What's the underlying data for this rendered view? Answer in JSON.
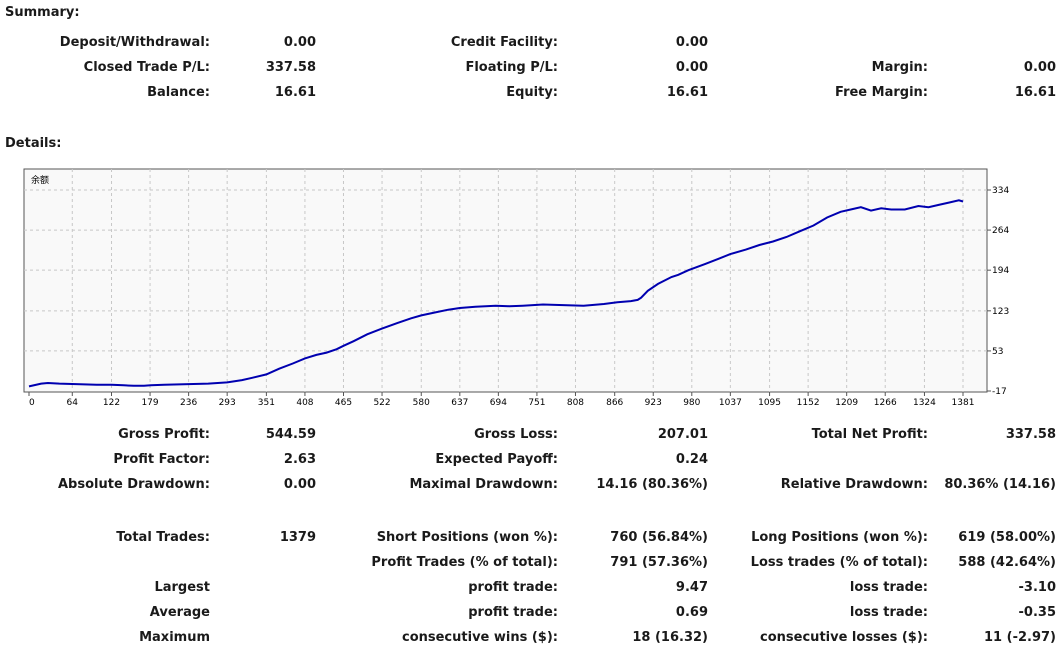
{
  "summary": {
    "heading": "Summary:",
    "deposit_label": "Deposit/Withdrawal:",
    "deposit_value": "0.00",
    "credit_label": "Credit Facility:",
    "credit_value": "0.00",
    "closed_pl_label": "Closed Trade P/L:",
    "closed_pl_value": "337.58",
    "floating_label": "Floating P/L:",
    "floating_value": "0.00",
    "margin_label": "Margin:",
    "margin_value": "0.00",
    "balance_label": "Balance:",
    "balance_value": "16.61",
    "equity_label": "Equity:",
    "equity_value": "16.61",
    "free_margin_label": "Free Margin:",
    "free_margin_value": "16.61"
  },
  "details": {
    "heading": "Details:",
    "chart_legend": "余额"
  },
  "chart_data": {
    "type": "line",
    "x_ticks": [
      "0",
      "64",
      "122",
      "179",
      "236",
      "293",
      "351",
      "408",
      "465",
      "522",
      "580",
      "637",
      "694",
      "751",
      "808",
      "866",
      "923",
      "980",
      "1037",
      "1095",
      "1152",
      "1209",
      "1266",
      "1324",
      "1381"
    ],
    "y_ticks": [
      "334",
      "264",
      "194",
      "123",
      "53",
      "-17"
    ],
    "xlim": [
      0,
      1381
    ],
    "ylim": [
      -17,
      334
    ],
    "series": [
      {
        "name": "余额",
        "color": "#0000b0",
        "x": [
          0,
          18,
          28,
          45,
          70,
          100,
          122,
          140,
          155,
          170,
          180,
          200,
          236,
          265,
          293,
          315,
          330,
          351,
          370,
          390,
          408,
          425,
          440,
          455,
          465,
          480,
          500,
          522,
          545,
          565,
          580,
          600,
          620,
          637,
          660,
          690,
          710,
          730,
          760,
          790,
          820,
          850,
          870,
          890,
          900,
          905,
          915,
          930,
          950,
          960,
          975,
          1000,
          1020,
          1037,
          1060,
          1080,
          1100,
          1120,
          1140,
          1160,
          1180,
          1200,
          1215,
          1230,
          1245,
          1260,
          1275,
          1295,
          1315,
          1330,
          1345,
          1360,
          1375,
          1381
        ],
        "y": [
          -9,
          -4,
          -3,
          -4,
          -5,
          -6,
          -6,
          -7,
          -8,
          -8,
          -7,
          -6,
          -5,
          -4,
          -2,
          2,
          6,
          12,
          22,
          31,
          40,
          46,
          50,
          56,
          62,
          70,
          82,
          92,
          102,
          110,
          115,
          120,
          125,
          128,
          130,
          132,
          131,
          132,
          134,
          133,
          132,
          135,
          138,
          140,
          142,
          146,
          158,
          170,
          182,
          186,
          194,
          205,
          214,
          222,
          230,
          238,
          244,
          252,
          262,
          272,
          286,
          296,
          300,
          304,
          298,
          302,
          300,
          300,
          306,
          304,
          308,
          312,
          316,
          314
        ]
      }
    ]
  },
  "stats": {
    "gross_profit_label": "Gross Profit:",
    "gross_profit_value": "544.59",
    "gross_loss_label": "Gross Loss:",
    "gross_loss_value": "207.01",
    "total_net_label": "Total Net Profit:",
    "total_net_value": "337.58",
    "profit_factor_label": "Profit Factor:",
    "profit_factor_value": "2.63",
    "expected_payoff_label": "Expected Payoff:",
    "expected_payoff_value": "0.24",
    "abs_dd_label": "Absolute Drawdown:",
    "abs_dd_value": "0.00",
    "max_dd_label": "Maximal Drawdown:",
    "max_dd_value": "14.16 (80.36%)",
    "rel_dd_label": "Relative Drawdown:",
    "rel_dd_value": "80.36% (14.16)",
    "total_trades_label": "Total Trades:",
    "total_trades_value": "1379",
    "short_label": "Short Positions (won %):",
    "short_value": "760 (56.84%)",
    "long_label": "Long Positions (won %):",
    "long_value": "619 (58.00%)",
    "profit_trades_label": "Profit Trades (% of total):",
    "profit_trades_value": "791 (57.36%)",
    "loss_trades_label": "Loss trades (% of total):",
    "loss_trades_value": "588 (42.64%)",
    "largest_label": "Largest",
    "largest_profit_label": "profit trade:",
    "largest_profit_value": "9.47",
    "largest_loss_label": "loss trade:",
    "largest_loss_value": "-3.10",
    "average_label": "Average",
    "average_profit_label": "profit trade:",
    "average_profit_value": "0.69",
    "average_loss_label": "loss trade:",
    "average_loss_value": "-0.35",
    "maximum_label": "Maximum",
    "max_wins_label": "consecutive wins ($):",
    "max_wins_value": "18 (16.32)",
    "max_losses_label": "consecutive losses ($):",
    "max_losses_value": "11 (-2.97)"
  }
}
